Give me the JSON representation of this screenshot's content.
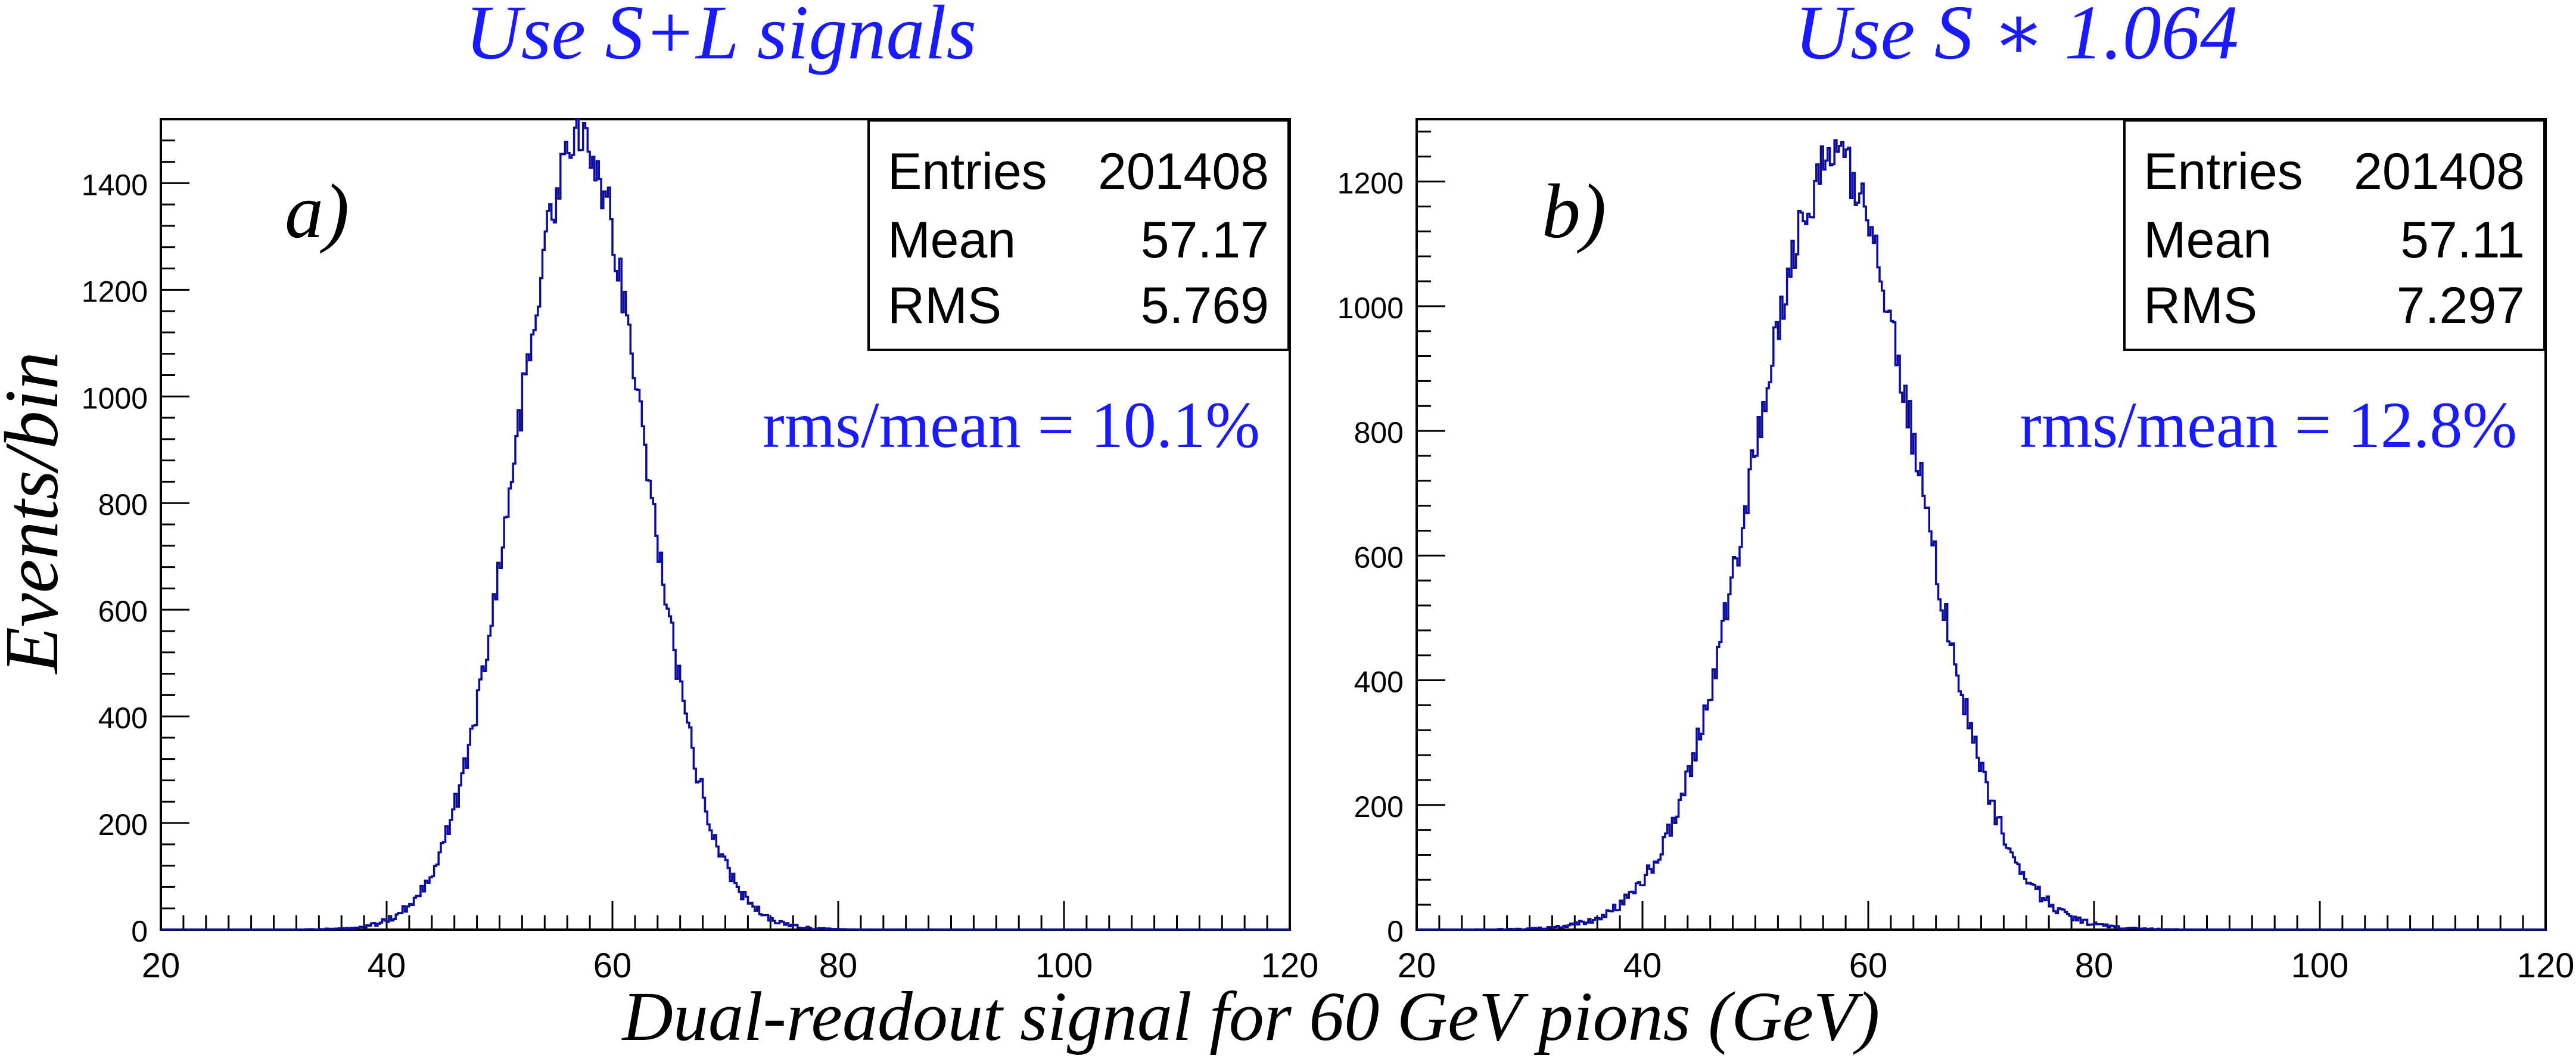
{
  "figure": {
    "xlabel": "Dual-readout signal for 60 GeV pions (GeV)",
    "ylabel": "Events/bin",
    "colors": {
      "accent": "#1a1aff",
      "hist": "#0b0b9c",
      "axis": "#000000"
    }
  },
  "chart_data": [
    {
      "type": "histogram",
      "panel_label": "a)",
      "title": "Use S+L signals",
      "annotation": "rms/mean = 10.1%",
      "stats": [
        {
          "label": "Entries",
          "value": "201408"
        },
        {
          "label": "Mean",
          "value": "57.17"
        },
        {
          "label": "RMS",
          "value": "5.769"
        }
      ],
      "xlim": [
        20,
        120
      ],
      "ylim": [
        0,
        1520
      ],
      "x_ticks": [
        20,
        40,
        60,
        80,
        100,
        120
      ],
      "y_ticks": [
        0,
        200,
        400,
        600,
        800,
        1000,
        1200,
        1400
      ],
      "distribution": {
        "entries": 201408,
        "mean": 57.17,
        "rms": 5.769,
        "bins": 500,
        "peak": 1480
      },
      "grid": false
    },
    {
      "type": "histogram",
      "panel_label": "b)",
      "title": "Use S ∗ 1.064",
      "annotation": "rms/mean = 12.8%",
      "stats": [
        {
          "label": "Entries",
          "value": "201408"
        },
        {
          "label": "Mean",
          "value": "57.11"
        },
        {
          "label": "RMS",
          "value": "7.297"
        }
      ],
      "xlim": [
        20,
        120
      ],
      "ylim": [
        0,
        1300
      ],
      "x_ticks": [
        20,
        40,
        60,
        80,
        100,
        120
      ],
      "y_ticks": [
        0,
        200,
        400,
        600,
        800,
        1000,
        1200
      ],
      "distribution": {
        "entries": 201408,
        "mean": 57.11,
        "rms": 7.297,
        "bins": 500,
        "peak": 1230
      },
      "grid": false
    }
  ]
}
